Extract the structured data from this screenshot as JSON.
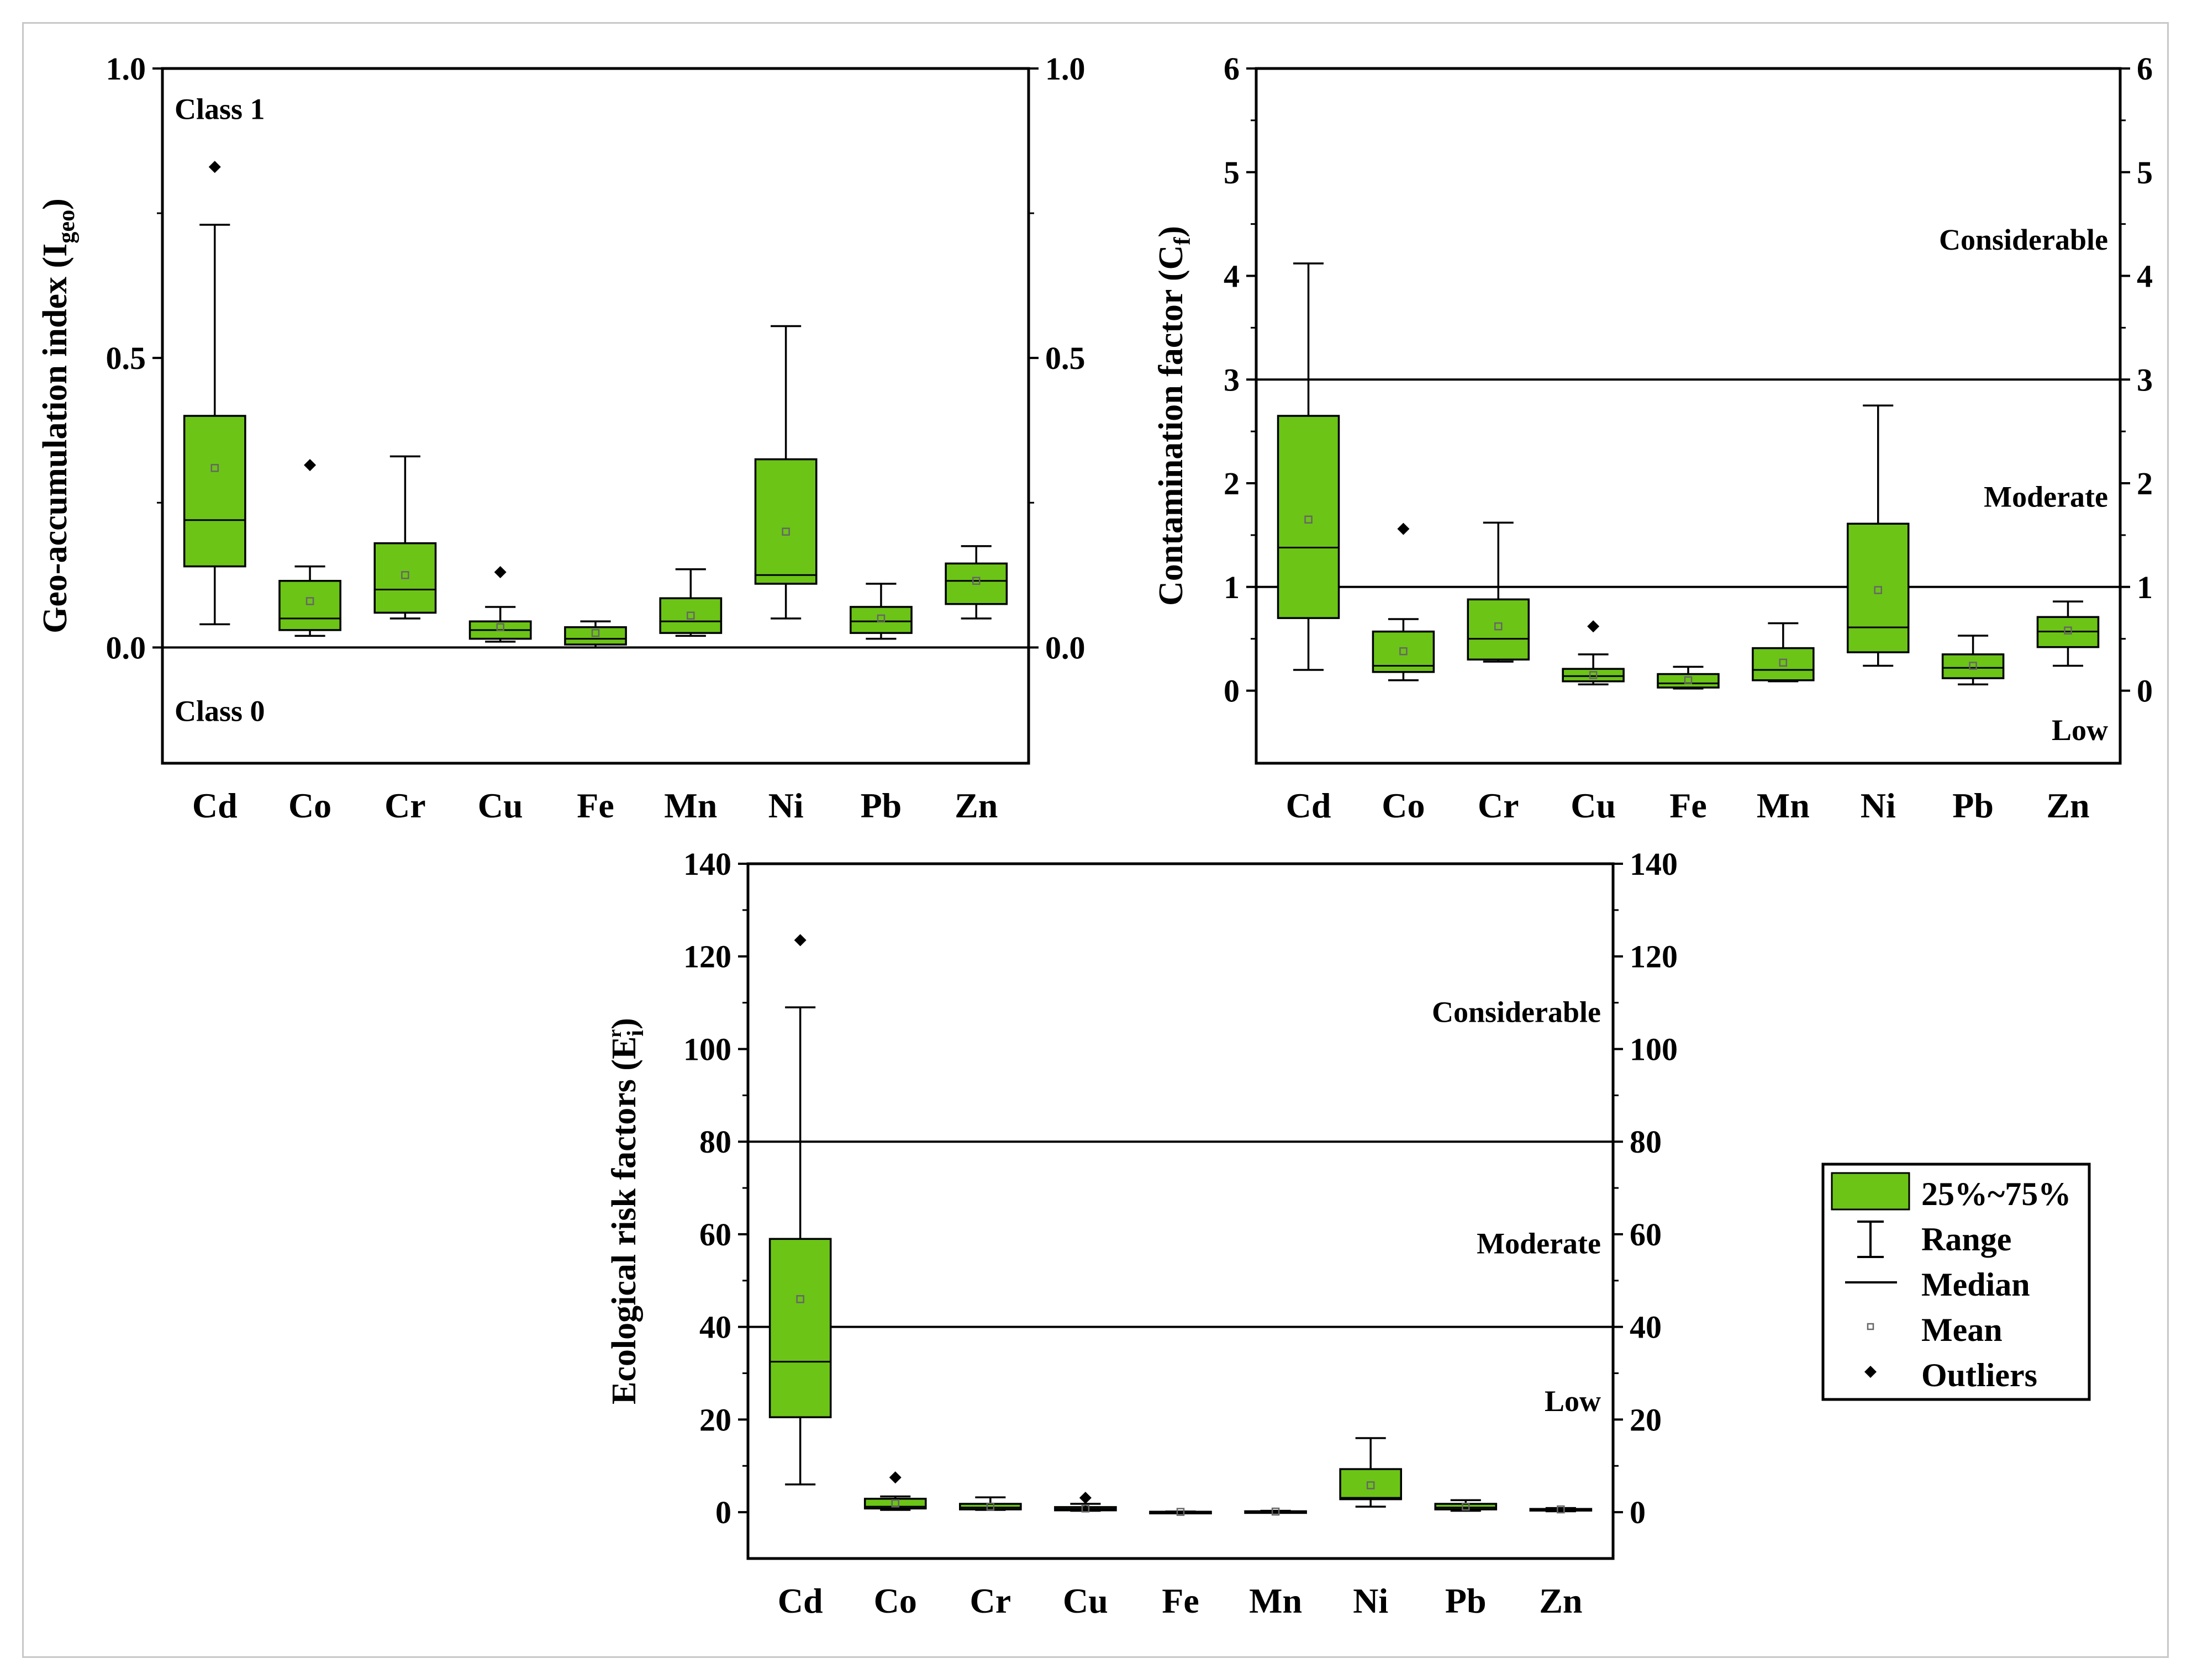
{
  "colors": {
    "box_fill": "#6cc417",
    "box_stroke": "#000000",
    "line": "#000000",
    "mean_marker": "#666666"
  },
  "chart_data": [
    {
      "id": "igeo",
      "type": "box",
      "title": "",
      "xlabel": "",
      "ylabel": "Geo-accumulation index (I",
      "ylabel_sub": "geo",
      "ylabel_after": ")",
      "ylim": [
        -0.2,
        1.0
      ],
      "yticks": [
        0.0,
        0.5,
        1.0
      ],
      "yticklabels": [
        "0.0",
        "0.5",
        "1.0"
      ],
      "categories": [
        "Cd",
        "Co",
        "Cr",
        "Cu",
        "Fe",
        "Mn",
        "Ni",
        "Pb",
        "Zn"
      ],
      "boxes": [
        {
          "min": 0.04,
          "q1": 0.14,
          "median": 0.22,
          "q3": 0.4,
          "max": 0.73,
          "mean": 0.31,
          "outliers": [
            0.83
          ]
        },
        {
          "min": 0.02,
          "q1": 0.03,
          "median": 0.05,
          "q3": 0.115,
          "max": 0.14,
          "mean": 0.08,
          "outliers": [
            0.315
          ]
        },
        {
          "min": 0.05,
          "q1": 0.06,
          "median": 0.1,
          "q3": 0.18,
          "max": 0.33,
          "mean": 0.125,
          "outliers": []
        },
        {
          "min": 0.01,
          "q1": 0.015,
          "median": 0.03,
          "q3": 0.045,
          "max": 0.07,
          "mean": 0.035,
          "outliers": [
            0.13
          ]
        },
        {
          "min": 0.0,
          "q1": 0.005,
          "median": 0.015,
          "q3": 0.035,
          "max": 0.045,
          "mean": 0.025,
          "outliers": []
        },
        {
          "min": 0.02,
          "q1": 0.025,
          "median": 0.045,
          "q3": 0.085,
          "max": 0.135,
          "mean": 0.055,
          "outliers": []
        },
        {
          "min": 0.05,
          "q1": 0.11,
          "median": 0.125,
          "q3": 0.325,
          "max": 0.555,
          "mean": 0.2,
          "outliers": []
        },
        {
          "min": 0.015,
          "q1": 0.025,
          "median": 0.045,
          "q3": 0.07,
          "max": 0.11,
          "mean": 0.05,
          "outliers": []
        },
        {
          "min": 0.05,
          "q1": 0.075,
          "median": 0.115,
          "q3": 0.145,
          "max": 0.175,
          "mean": 0.115,
          "outliers": []
        }
      ],
      "hlines": [
        0.0
      ],
      "annotations": [
        {
          "text": "Class 1",
          "y": 0.93,
          "align": "left"
        },
        {
          "text": "Class 0",
          "y": -0.11,
          "align": "left"
        }
      ]
    },
    {
      "id": "cf",
      "type": "box",
      "title": "",
      "xlabel": "",
      "ylabel": "Contamination factor (C",
      "ylabel_sub": "f",
      "ylabel_after": ")",
      "ylim": [
        -0.7,
        6.0
      ],
      "yticks": [
        0,
        1,
        2,
        3,
        4,
        5,
        6
      ],
      "yticklabels": [
        "0",
        "1",
        "2",
        "3",
        "4",
        "5",
        "6"
      ],
      "categories": [
        "Cd",
        "Co",
        "Cr",
        "Cu",
        "Fe",
        "Mn",
        "Ni",
        "Pb",
        "Zn"
      ],
      "boxes": [
        {
          "min": 0.2,
          "q1": 0.7,
          "median": 1.38,
          "q3": 2.65,
          "max": 4.12,
          "mean": 1.65,
          "outliers": []
        },
        {
          "min": 0.1,
          "q1": 0.18,
          "median": 0.24,
          "q3": 0.57,
          "max": 0.69,
          "mean": 0.38,
          "outliers": [
            1.56
          ]
        },
        {
          "min": 0.28,
          "q1": 0.3,
          "median": 0.5,
          "q3": 0.88,
          "max": 1.62,
          "mean": 0.62,
          "outliers": []
        },
        {
          "min": 0.06,
          "q1": 0.09,
          "median": 0.14,
          "q3": 0.21,
          "max": 0.35,
          "mean": 0.15,
          "outliers": [
            0.62
          ]
        },
        {
          "min": 0.02,
          "q1": 0.03,
          "median": 0.07,
          "q3": 0.16,
          "max": 0.23,
          "mean": 0.1,
          "outliers": []
        },
        {
          "min": 0.09,
          "q1": 0.1,
          "median": 0.2,
          "q3": 0.41,
          "max": 0.65,
          "mean": 0.27,
          "outliers": []
        },
        {
          "min": 0.24,
          "q1": 0.37,
          "median": 0.61,
          "q3": 1.61,
          "max": 2.75,
          "mean": 0.97,
          "outliers": []
        },
        {
          "min": 0.06,
          "q1": 0.12,
          "median": 0.22,
          "q3": 0.35,
          "max": 0.53,
          "mean": 0.24,
          "outliers": []
        },
        {
          "min": 0.24,
          "q1": 0.42,
          "median": 0.57,
          "q3": 0.71,
          "max": 0.86,
          "mean": 0.58,
          "outliers": []
        }
      ],
      "hlines": [
        1,
        3
      ],
      "annotations": [
        {
          "text": "Considerable",
          "y": 4.35,
          "align": "right"
        },
        {
          "text": "Moderate",
          "y": 1.87,
          "align": "right"
        },
        {
          "text": "Low",
          "y": -0.38,
          "align": "right"
        }
      ]
    },
    {
      "id": "er",
      "type": "box",
      "title": "",
      "xlabel": "",
      "ylabel": "Ecological risk factors (E",
      "ylabel_sub": "i",
      "ylabel_sup": "r",
      "ylabel_after": ")",
      "ylim": [
        -10,
        140
      ],
      "yticks": [
        0,
        20,
        40,
        60,
        80,
        100,
        120,
        140
      ],
      "yticklabels": [
        "0",
        "20",
        "40",
        "60",
        "80",
        "100",
        "120",
        "140"
      ],
      "categories": [
        "Cd",
        "Co",
        "Cr",
        "Cu",
        "Fe",
        "Mn",
        "Ni",
        "Pb",
        "Zn"
      ],
      "boxes": [
        {
          "min": 6,
          "q1": 20.5,
          "median": 32.5,
          "q3": 59,
          "max": 109,
          "mean": 46,
          "outliers": [
            123.5
          ]
        },
        {
          "min": 0.5,
          "q1": 0.8,
          "median": 1.2,
          "q3": 2.9,
          "max": 3.4,
          "mean": 1.9,
          "outliers": [
            7.5
          ]
        },
        {
          "min": 0.5,
          "q1": 0.6,
          "median": 1,
          "q3": 1.8,
          "max": 3.2,
          "mean": 1.2,
          "outliers": []
        },
        {
          "min": 0.3,
          "q1": 0.4,
          "median": 0.7,
          "q3": 1.1,
          "max": 1.8,
          "mean": 0.8,
          "outliers": [
            3.1
          ]
        },
        {
          "min": 0.0,
          "q1": 0.02,
          "median": 0.05,
          "q3": 0.1,
          "max": 0.15,
          "mean": 0.06,
          "outliers": []
        },
        {
          "min": 0.05,
          "q1": 0.06,
          "median": 0.1,
          "q3": 0.2,
          "max": 0.3,
          "mean": 0.13,
          "outliers": []
        },
        {
          "min": 1.2,
          "q1": 2.8,
          "median": 3.1,
          "q3": 9.3,
          "max": 16,
          "mean": 5.8,
          "outliers": []
        },
        {
          "min": 0.3,
          "q1": 0.6,
          "median": 1,
          "q3": 1.8,
          "max": 2.6,
          "mean": 1.2,
          "outliers": []
        },
        {
          "min": 0.2,
          "q1": 0.4,
          "median": 0.6,
          "q3": 0.7,
          "max": 0.9,
          "mean": 0.6,
          "outliers": []
        }
      ],
      "hlines": [
        40,
        80
      ],
      "annotations": [
        {
          "text": "Considerable",
          "y": 108,
          "align": "right"
        },
        {
          "text": "Moderate",
          "y": 58,
          "align": "right"
        },
        {
          "text": "Low",
          "y": 24,
          "align": "right"
        }
      ]
    }
  ],
  "legend": {
    "items": [
      "25%~75%",
      "Range",
      "Median",
      "Mean",
      "Outliers"
    ]
  }
}
